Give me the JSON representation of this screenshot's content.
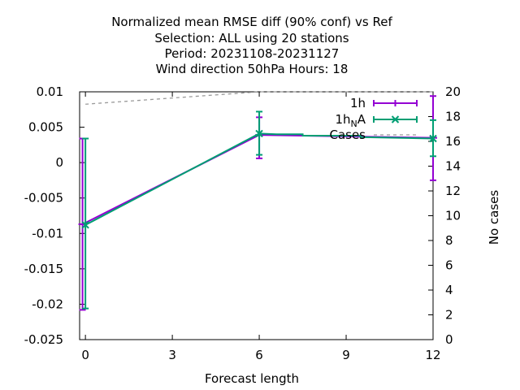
{
  "chart_data": {
    "type": "line",
    "title_lines": [
      "Normalized mean RMSE diff (90% conf) vs Ref",
      "Selection: ALL using    20 stations",
      "Period: 20231108-20231127",
      "Wind direction 50hPa   Hours:  18"
    ],
    "xlabel": "Forecast length",
    "ylabel": "",
    "y2label": "No cases",
    "xlim": [
      -0.2,
      12
    ],
    "ylim": [
      -0.025,
      0.01
    ],
    "y2lim": [
      0,
      20
    ],
    "xticks": [
      0,
      3,
      6,
      9,
      12
    ],
    "xtick_labels": [
      "0",
      "3",
      "6",
      "9",
      "12"
    ],
    "yticks": [
      -0.025,
      -0.02,
      -0.015,
      -0.01,
      -0.005,
      0,
      0.005,
      0.01
    ],
    "ytick_labels": [
      "-0.025",
      "-0.02",
      "-0.015",
      "-0.01",
      "-0.005",
      "0",
      "0.005",
      "0.01"
    ],
    "y2ticks": [
      0,
      2,
      4,
      6,
      8,
      10,
      12,
      14,
      16,
      18,
      20
    ],
    "y2tick_labels": [
      "0",
      "2",
      "4",
      "6",
      "8",
      "10",
      "12",
      "14",
      "16",
      "18",
      "20"
    ],
    "legend_position": "top-right",
    "series": [
      {
        "name": "1h",
        "color": "#9400d3",
        "axis": "y",
        "x": [
          -0.1,
          6,
          12
        ],
        "y": [
          -0.0087,
          0.0039,
          0.0035
        ],
        "err_low": [
          -0.0208,
          0.0006,
          -0.0025
        ],
        "err_high": [
          0.0034,
          0.0064,
          0.0094
        ]
      },
      {
        "name": "1h_NA",
        "legend_main": "1h",
        "legend_sub": "N",
        "legend_tail": "A",
        "color": "#009e73",
        "axis": "y",
        "x": [
          0,
          6,
          12
        ],
        "y": [
          -0.0088,
          0.0041,
          0.0034
        ],
        "err_low": [
          -0.0206,
          0.0011,
          0.0009
        ],
        "err_high": [
          0.0034,
          0.0072,
          0.006
        ]
      },
      {
        "name": "Cases",
        "color": "#999999",
        "axis": "y2",
        "style": "dashed",
        "x": [
          0,
          3,
          6,
          12
        ],
        "y": [
          19,
          19.5,
          20,
          20
        ]
      }
    ]
  }
}
